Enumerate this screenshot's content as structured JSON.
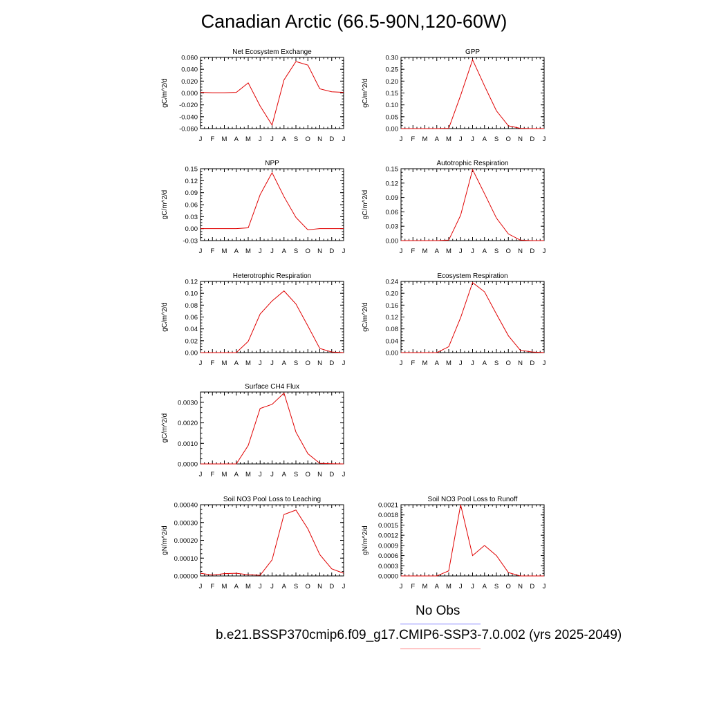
{
  "title": "Canadian Arctic (66.5-90N,120-60W)",
  "legend": [
    {
      "label": "No Obs",
      "color": "#7b7bff"
    },
    {
      "label": "b.e21.BSSP370cmip6.f09_g17.CMIP6-SSP3-7.0.002 (yrs 2025-2049)",
      "color": "#ff8080"
    }
  ],
  "line_color": "#e00000",
  "chart_data": [
    {
      "type": "line",
      "title": "Net Ecosystem Exchange",
      "ylabel": "gC/m^2/d",
      "categories": [
        "J",
        "F",
        "M",
        "A",
        "M",
        "J",
        "J",
        "A",
        "S",
        "O",
        "N",
        "D",
        "J"
      ],
      "yticks": [
        "0.060",
        "0.040",
        "0.020",
        "0.000",
        "-0.020",
        "-0.040",
        "-0.060"
      ],
      "ylim": [
        -0.06,
        0.06
      ],
      "series": [
        {
          "values": [
            0.001,
            0.0005,
            0.0005,
            0.001,
            0.017,
            -0.022,
            -0.054,
            0.022,
            0.053,
            0.047,
            0.007,
            0.002,
            0.001
          ]
        }
      ]
    },
    {
      "type": "line",
      "title": "GPP",
      "ylabel": "gC/m^2/d",
      "categories": [
        "J",
        "F",
        "M",
        "A",
        "M",
        "J",
        "J",
        "A",
        "S",
        "O",
        "N",
        "D",
        "J"
      ],
      "yticks": [
        "0.30",
        "0.25",
        "0.20",
        "0.15",
        "0.10",
        "0.05",
        "0.00"
      ],
      "ylim": [
        0,
        0.3
      ],
      "series": [
        {
          "values": [
            0,
            0,
            0,
            0,
            0.001,
            0.14,
            0.29,
            0.18,
            0.075,
            0.012,
            0.001,
            0,
            0
          ]
        }
      ]
    },
    {
      "type": "line",
      "title": "NPP",
      "ylabel": "gC/m^2/d",
      "categories": [
        "J",
        "F",
        "M",
        "A",
        "M",
        "J",
        "J",
        "A",
        "S",
        "O",
        "N",
        "D",
        "J"
      ],
      "yticks": [
        "0.15",
        "0.12",
        "0.09",
        "0.06",
        "0.03",
        "0.00",
        "-0.03"
      ],
      "ylim": [
        -0.03,
        0.15
      ],
      "series": [
        {
          "values": [
            0,
            0,
            0,
            0,
            0.002,
            0.085,
            0.14,
            0.08,
            0.028,
            -0.003,
            0,
            0,
            0
          ]
        }
      ]
    },
    {
      "type": "line",
      "title": "Autotrophic Respiration",
      "ylabel": "gC/m^2/d",
      "categories": [
        "J",
        "F",
        "M",
        "A",
        "M",
        "J",
        "J",
        "A",
        "S",
        "O",
        "N",
        "D",
        "J"
      ],
      "yticks": [
        "0.15",
        "0.12",
        "0.09",
        "0.06",
        "0.03",
        "0.00"
      ],
      "ylim": [
        0,
        0.15
      ],
      "series": [
        {
          "values": [
            0,
            0,
            0,
            0,
            0.001,
            0.053,
            0.148,
            0.098,
            0.047,
            0.014,
            0.001,
            0,
            0
          ]
        }
      ]
    },
    {
      "type": "line",
      "title": "Heterotrophic Respiration",
      "ylabel": "gC/m^2/d",
      "categories": [
        "J",
        "F",
        "M",
        "A",
        "M",
        "J",
        "J",
        "A",
        "S",
        "O",
        "N",
        "D",
        "J"
      ],
      "yticks": [
        "0.12",
        "0.10",
        "0.08",
        "0.06",
        "0.04",
        "0.02",
        "0.00"
      ],
      "ylim": [
        0,
        0.12
      ],
      "series": [
        {
          "values": [
            0,
            0,
            0,
            0,
            0.019,
            0.065,
            0.087,
            0.104,
            0.082,
            0.045,
            0.007,
            0.001,
            0
          ]
        }
      ]
    },
    {
      "type": "line",
      "title": "Ecosystem Respiration",
      "ylabel": "gC/m^2/d",
      "categories": [
        "J",
        "F",
        "M",
        "A",
        "M",
        "J",
        "J",
        "A",
        "S",
        "O",
        "N",
        "D",
        "J"
      ],
      "yticks": [
        "0.24",
        "0.20",
        "0.16",
        "0.12",
        "0.08",
        "0.04",
        "0.00"
      ],
      "ylim": [
        0,
        0.24
      ],
      "series": [
        {
          "values": [
            0,
            0,
            0,
            0,
            0.02,
            0.118,
            0.236,
            0.205,
            0.13,
            0.057,
            0.008,
            0.002,
            0
          ]
        }
      ]
    },
    {
      "type": "line",
      "title": "Surface CH4 Flux",
      "ylabel": "gC/m^2/d",
      "categories": [
        "J",
        "F",
        "M",
        "A",
        "M",
        "J",
        "J",
        "A",
        "S",
        "O",
        "N",
        "D",
        "J"
      ],
      "yticks": [
        "0.0030",
        "0.0020",
        "0.0010",
        "0.0000"
      ],
      "ylim": [
        0,
        0.0035
      ],
      "series": [
        {
          "values": [
            0,
            0,
            0,
            0,
            0.0009,
            0.0027,
            0.0029,
            0.00345,
            0.00155,
            0.0005,
            3e-05,
            1e-05,
            0
          ]
        }
      ]
    },
    {
      "type": "line",
      "title": "Soil NO3 Pool Loss to Leaching",
      "ylabel": "gN/m^2/d",
      "categories": [
        "J",
        "F",
        "M",
        "A",
        "M",
        "J",
        "J",
        "A",
        "S",
        "O",
        "N",
        "D",
        "J"
      ],
      "yticks": [
        "0.00040",
        "0.00030",
        "0.00020",
        "0.00010",
        "0.00000"
      ],
      "ylim": [
        0,
        0.0004
      ],
      "series": [
        {
          "values": [
            1.5e-05,
            5e-06,
            1.3e-05,
            1.5e-05,
            7e-06,
            4e-06,
            9e-05,
            0.000345,
            0.00037,
            0.000265,
            0.00012,
            4e-05,
            1.5e-05
          ]
        }
      ]
    },
    {
      "type": "line",
      "title": "Soil NO3 Pool Loss to Runoff",
      "ylabel": "gN/m^2/d",
      "categories": [
        "J",
        "F",
        "M",
        "A",
        "M",
        "J",
        "J",
        "A",
        "S",
        "O",
        "N",
        "D",
        "J"
      ],
      "yticks": [
        "0.0021",
        "0.0018",
        "0.0015",
        "0.0012",
        "0.0009",
        "0.0006",
        "0.0003",
        "0.0000"
      ],
      "ylim": [
        0,
        0.0021
      ],
      "series": [
        {
          "values": [
            0,
            0,
            0,
            0,
            0.00015,
            0.0021,
            0.0006,
            0.0009,
            0.0006,
            0.0001,
            0,
            0,
            0
          ]
        }
      ]
    }
  ]
}
